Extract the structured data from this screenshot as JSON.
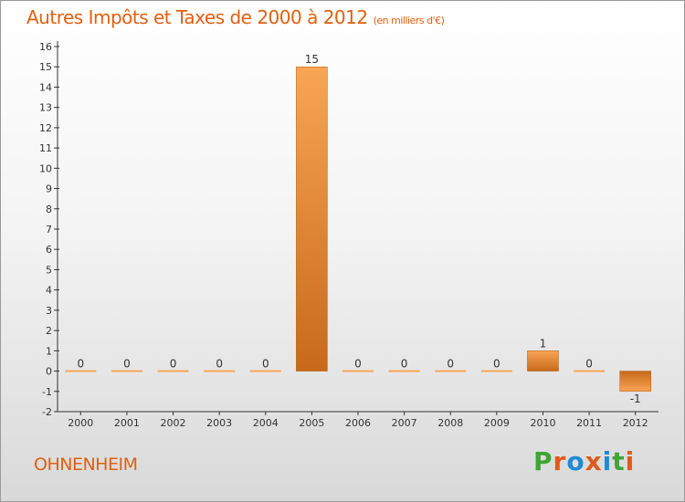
{
  "header": {
    "title": "Autres Impôts et Taxes de 2000 à 2012",
    "unit": "(en milliers d'€)"
  },
  "footer": {
    "town": "OHNENHEIM",
    "logo": "Proxiti"
  },
  "colors": {
    "accent": "#e06010",
    "bar_light": "#f8a555",
    "bar_dark": "#c8691a",
    "logo": [
      "#3fa535",
      "#e05a1a",
      "#1f8ad6",
      "#e05a1a",
      "#1f8ad6",
      "#3fa535",
      "#e05a1a"
    ]
  },
  "chart_data": {
    "type": "bar",
    "categories": [
      "2000",
      "2001",
      "2002",
      "2003",
      "2004",
      "2005",
      "2006",
      "2007",
      "2008",
      "2009",
      "2010",
      "2011",
      "2012"
    ],
    "values": [
      0,
      0,
      0,
      0,
      0,
      15,
      0,
      0,
      0,
      0,
      1,
      0,
      -1
    ],
    "data_labels": [
      "0",
      "0",
      "0",
      "0",
      "0",
      "15",
      "0",
      "0",
      "0",
      "0",
      "1",
      "0",
      "-1"
    ],
    "title": "Autres Impôts et Taxes de 2000 à 2012",
    "ylim": [
      -2,
      16
    ],
    "yticks": [
      "-2",
      "-1",
      "0",
      "1",
      "2",
      "3",
      "4",
      "5",
      "6",
      "7",
      "8",
      "9",
      "10",
      "11",
      "12",
      "13",
      "14",
      "15",
      "16"
    ],
    "grid": false
  }
}
